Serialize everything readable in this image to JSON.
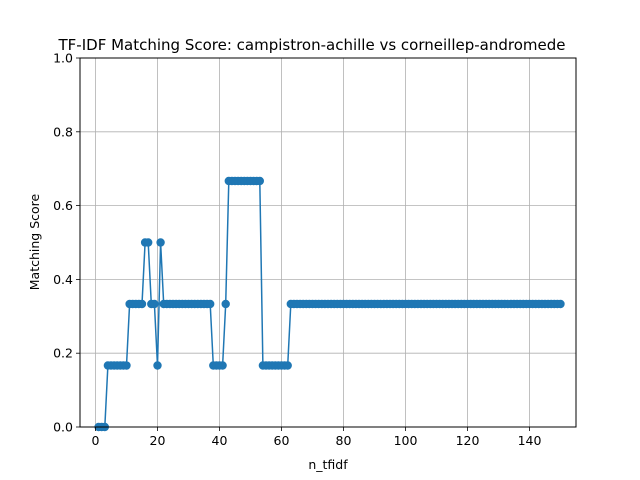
{
  "chart_data": {
    "type": "line",
    "title": "TF-IDF Matching Score: campistron-achille vs corneillep-andromede",
    "xlabel": "n_tfidf",
    "ylabel": "Matching Score",
    "xlim": [
      -5,
      155
    ],
    "ylim": [
      0,
      1
    ],
    "xticks": [
      0,
      20,
      40,
      60,
      80,
      100,
      120,
      140
    ],
    "yticks": [
      0.0,
      0.2,
      0.4,
      0.6,
      0.8,
      1.0
    ],
    "ytick_labels": [
      "0.0",
      "0.2",
      "0.4",
      "0.6",
      "0.8",
      "1.0"
    ],
    "grid": true,
    "marker": "circle",
    "color": "#1f77b4",
    "series": [
      {
        "x": [
          1,
          2,
          3,
          4,
          5,
          6,
          7,
          8,
          9,
          10,
          11,
          12,
          13,
          14,
          15,
          16,
          17,
          18,
          19,
          20,
          21,
          22,
          23,
          24,
          25,
          26,
          27,
          28,
          29,
          30,
          31,
          32,
          33,
          34,
          35,
          36,
          37,
          38,
          39,
          40,
          41,
          42,
          43,
          44,
          45,
          46,
          47,
          48,
          49,
          50,
          51,
          52,
          53,
          54,
          55,
          56,
          57,
          58,
          59,
          60,
          61,
          62,
          63,
          64,
          65,
          66,
          67,
          68,
          69,
          70,
          71,
          72,
          73,
          74,
          75,
          76,
          77,
          78,
          79,
          80,
          81,
          82,
          83,
          84,
          85,
          86,
          87,
          88,
          89,
          90,
          91,
          92,
          93,
          94,
          95,
          96,
          97,
          98,
          99,
          100,
          101,
          102,
          103,
          104,
          105,
          106,
          107,
          108,
          109,
          110,
          111,
          112,
          113,
          114,
          115,
          116,
          117,
          118,
          119,
          120,
          121,
          122,
          123,
          124,
          125,
          126,
          127,
          128,
          129,
          130,
          131,
          132,
          133,
          134,
          135,
          136,
          137,
          138,
          139,
          140,
          141,
          142,
          143,
          144,
          145,
          146,
          147,
          148,
          149,
          150
        ],
        "y": [
          0,
          0,
          0,
          0.1667,
          0.1667,
          0.1667,
          0.1667,
          0.1667,
          0.1667,
          0.1667,
          0.3333,
          0.3333,
          0.3333,
          0.3333,
          0.3333,
          0.5,
          0.5,
          0.3333,
          0.3333,
          0.1667,
          0.5,
          0.3333,
          0.3333,
          0.3333,
          0.3333,
          0.3333,
          0.3333,
          0.3333,
          0.3333,
          0.3333,
          0.3333,
          0.3333,
          0.3333,
          0.3333,
          0.3333,
          0.3333,
          0.3333,
          0.1667,
          0.1667,
          0.1667,
          0.1667,
          0.3333,
          0.6667,
          0.6667,
          0.6667,
          0.6667,
          0.6667,
          0.6667,
          0.6667,
          0.6667,
          0.6667,
          0.6667,
          0.6667,
          0.1667,
          0.1667,
          0.1667,
          0.1667,
          0.1667,
          0.1667,
          0.1667,
          0.1667,
          0.1667,
          0.3333,
          0.3333,
          0.3333,
          0.3333,
          0.3333,
          0.3333,
          0.3333,
          0.3333,
          0.3333,
          0.3333,
          0.3333,
          0.3333,
          0.3333,
          0.3333,
          0.3333,
          0.3333,
          0.3333,
          0.3333,
          0.3333,
          0.3333,
          0.3333,
          0.3333,
          0.3333,
          0.3333,
          0.3333,
          0.3333,
          0.3333,
          0.3333,
          0.3333,
          0.3333,
          0.3333,
          0.3333,
          0.3333,
          0.3333,
          0.3333,
          0.3333,
          0.3333,
          0.3333,
          0.3333,
          0.3333,
          0.3333,
          0.3333,
          0.3333,
          0.3333,
          0.3333,
          0.3333,
          0.3333,
          0.3333,
          0.3333,
          0.3333,
          0.3333,
          0.3333,
          0.3333,
          0.3333,
          0.3333,
          0.3333,
          0.3333,
          0.3333,
          0.3333,
          0.3333,
          0.3333,
          0.3333,
          0.3333,
          0.3333,
          0.3333,
          0.3333,
          0.3333,
          0.3333,
          0.3333,
          0.3333,
          0.3333,
          0.3333,
          0.3333,
          0.3333,
          0.3333,
          0.3333,
          0.3333,
          0.3333,
          0.3333,
          0.3333,
          0.3333,
          0.3333,
          0.3333,
          0.3333,
          0.3333,
          0.3333,
          0.3333,
          0.3333
        ]
      }
    ]
  }
}
